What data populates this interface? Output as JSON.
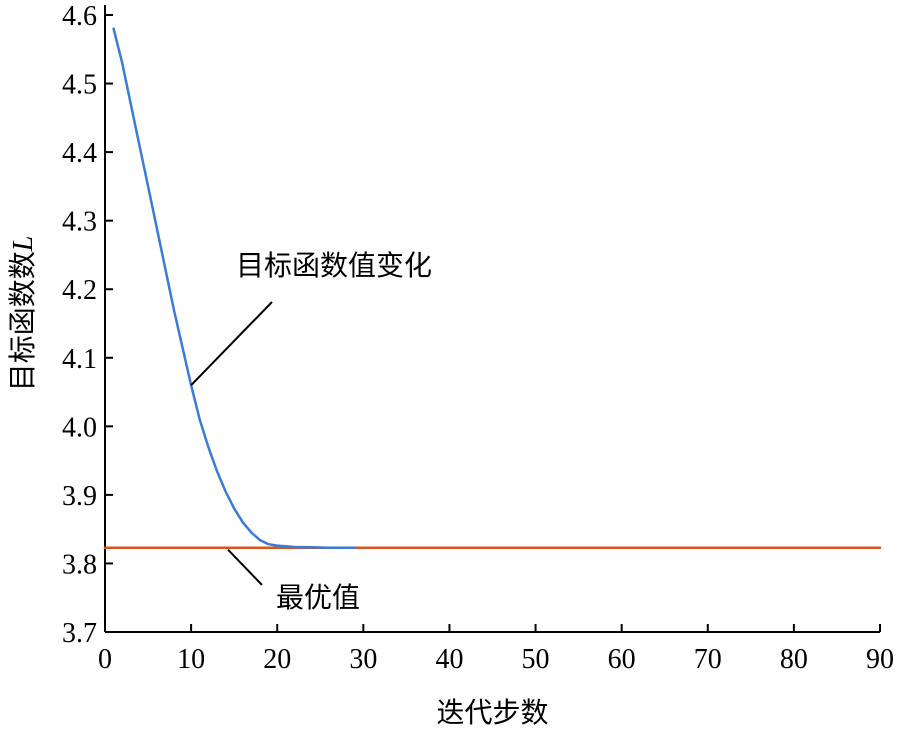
{
  "chart_data": {
    "type": "line",
    "xlabel": "迭代步数",
    "ylabel_text": "目标函数数",
    "ylabel_var": "L",
    "xlim": [
      0,
      90
    ],
    "ylim": [
      3.7,
      4.6
    ],
    "x_ticks": [
      0,
      10,
      20,
      30,
      40,
      50,
      60,
      70,
      80,
      90
    ],
    "y_ticks": [
      3.7,
      3.8,
      3.9,
      4.0,
      4.1,
      4.2,
      4.3,
      4.4,
      4.5,
      4.6
    ],
    "y_tick_labels": [
      "3.7",
      "3.8",
      "3.9",
      "4.0",
      "4.1",
      "4.2",
      "4.3",
      "4.4",
      "4.5",
      "4.6"
    ],
    "grid": false,
    "series": [
      {
        "color": "#3a7bd5",
        "x": [
          1,
          2,
          3,
          4,
          5,
          6,
          7,
          8,
          9,
          10,
          11,
          12,
          13,
          14,
          15,
          16,
          17,
          18,
          19,
          20,
          21,
          22,
          24,
          26,
          28,
          29
        ],
        "y": [
          4.58,
          4.53,
          4.47,
          4.41,
          4.35,
          4.29,
          4.23,
          4.17,
          4.115,
          4.06,
          4.01,
          3.97,
          3.935,
          3.905,
          3.88,
          3.86,
          3.845,
          3.834,
          3.828,
          3.826,
          3.825,
          3.824,
          3.8235,
          3.823,
          3.823,
          3.823
        ]
      },
      {
        "color": "#d9541e",
        "x": [
          0,
          90
        ],
        "y": [
          3.823,
          3.823
        ]
      }
    ],
    "annotations": [
      {
        "text": "目标函数值变化",
        "point": [
          10,
          4.06
        ],
        "label_at": [
          30,
          4.23
        ]
      },
      {
        "text": "最优值",
        "point": [
          14,
          3.823
        ],
        "label_at": [
          23,
          3.75
        ]
      }
    ]
  }
}
